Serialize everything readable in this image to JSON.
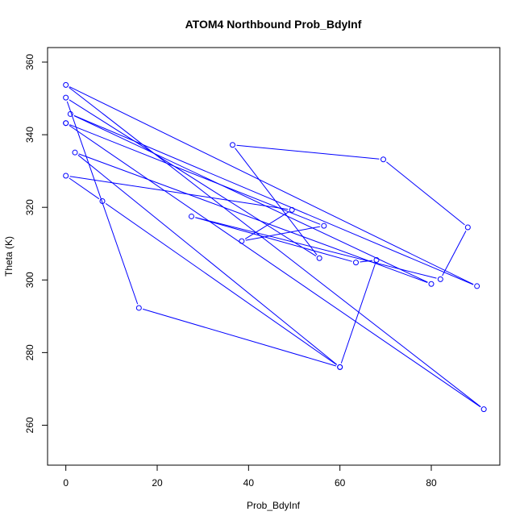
{
  "chart_data": {
    "type": "line",
    "title": "ATOM4 Northbound Prob_BdyInf",
    "xlabel": "Prob_BdyInf",
    "ylabel": "Theta (K)",
    "xlim": [
      -4,
      95
    ],
    "ylim": [
      249,
      364
    ],
    "x_ticks": [
      0,
      20,
      40,
      60,
      80
    ],
    "y_ticks": [
      260,
      280,
      300,
      320,
      340,
      360
    ],
    "grid": false,
    "series_color": "#0000ff",
    "markers": "open-circle",
    "x": [
      0.0,
      91.5,
      0.0,
      90.0,
      1.0,
      80.0,
      2.0,
      60.0,
      68.0,
      63.5,
      27.5,
      82.0,
      88.0,
      69.5,
      36.5,
      55.5,
      0.0,
      16.0,
      60.0,
      8.0,
      0.0,
      49.5,
      38.5,
      56.5,
      0.0
    ],
    "y": [
      343.2,
      264.4,
      353.7,
      298.3,
      345.7,
      298.9,
      335.1,
      276.0,
      305.5,
      304.8,
      317.5,
      300.2,
      314.5,
      333.2,
      337.2,
      306.0,
      350.2,
      292.3,
      276.0,
      321.7,
      328.7,
      319.3,
      310.7,
      314.9,
      343.2
    ]
  }
}
